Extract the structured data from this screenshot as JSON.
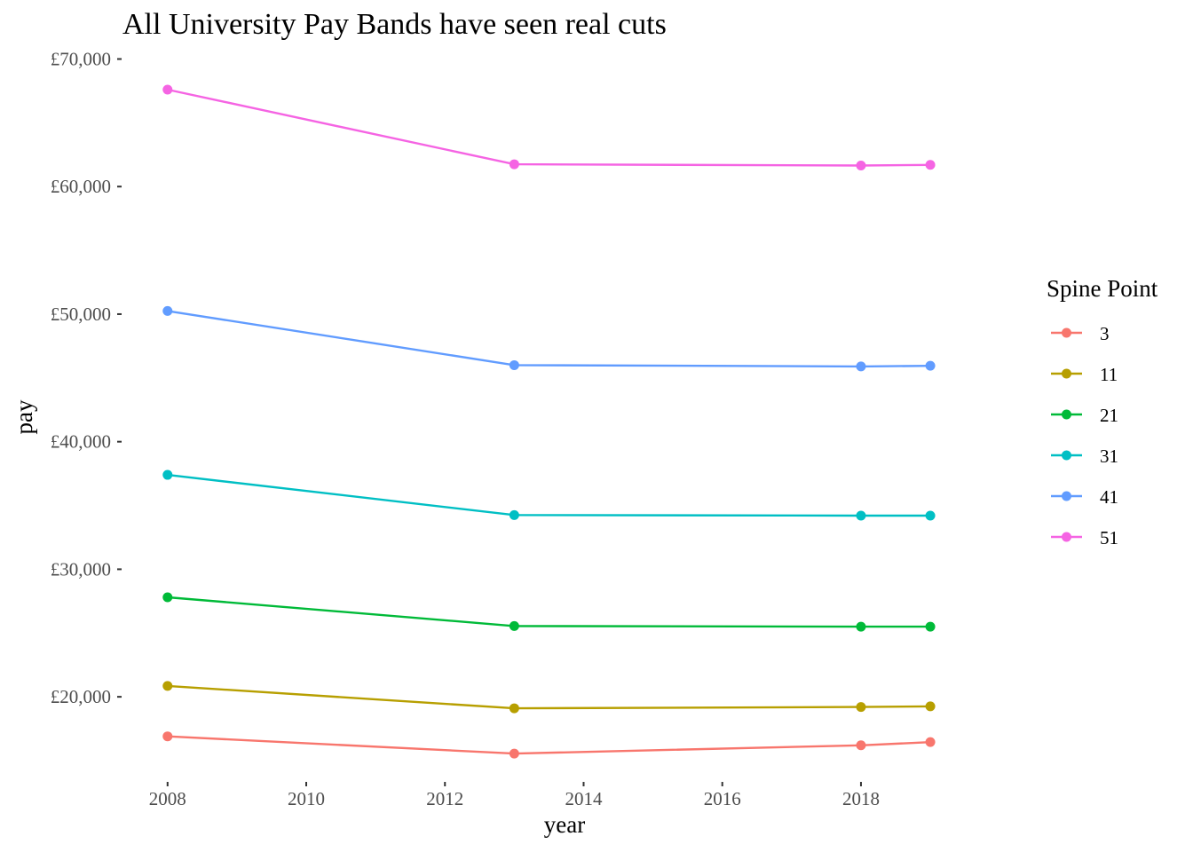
{
  "chart_data": {
    "type": "line",
    "title": "All University Pay Bands have seen real cuts",
    "xlabel": "year",
    "ylabel": "pay",
    "x": [
      2008,
      2013,
      2018,
      2019
    ],
    "xlim": [
      2007.35,
      2020.1
    ],
    "ylim": [
      13400,
      70800
    ],
    "x_ticks": [
      2008,
      2010,
      2012,
      2014,
      2016,
      2018
    ],
    "x_tick_labels": [
      "2008",
      "2010",
      "2012",
      "2014",
      "2016",
      "2018"
    ],
    "y_ticks": [
      20000,
      30000,
      40000,
      50000,
      60000,
      70000
    ],
    "y_tick_labels": [
      "£20,000",
      "£30,000",
      "£40,000",
      "£50,000",
      "£60,000",
      "£70,000"
    ],
    "grid": false,
    "legend": {
      "title": "Spine Point",
      "position": "right"
    },
    "series": [
      {
        "name": "3",
        "color": "#F8766D",
        "values": [
          16900,
          15550,
          16200,
          16450
        ]
      },
      {
        "name": "11",
        "color": "#B79F00",
        "values": [
          20850,
          19100,
          19200,
          19250
        ]
      },
      {
        "name": "21",
        "color": "#00BA38",
        "values": [
          27800,
          25550,
          25500,
          25500
        ]
      },
      {
        "name": "31",
        "color": "#00BFC4",
        "values": [
          37400,
          34250,
          34200,
          34200
        ]
      },
      {
        "name": "41",
        "color": "#619CFF",
        "values": [
          50250,
          46000,
          45900,
          45950
        ]
      },
      {
        "name": "51",
        "color": "#F564E3",
        "values": [
          67600,
          61750,
          61650,
          61700
        ]
      }
    ]
  }
}
